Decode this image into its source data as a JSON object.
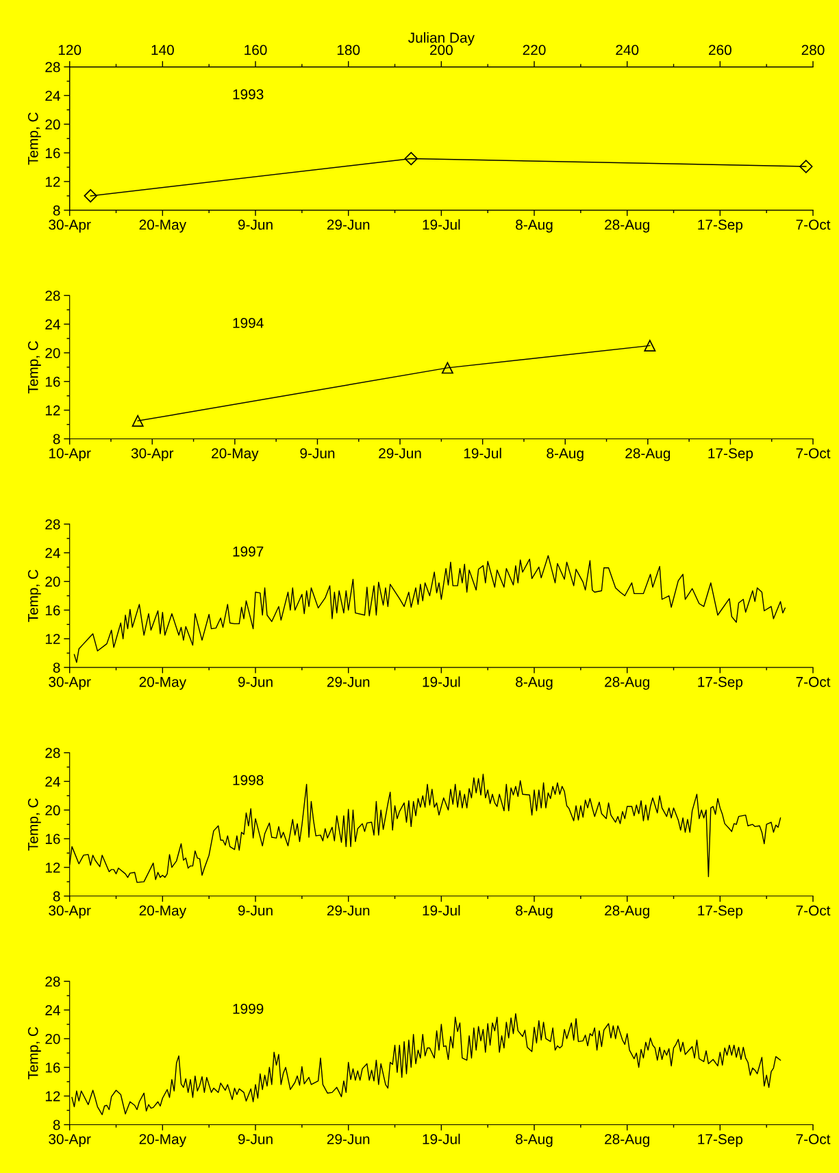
{
  "chart_data": [
    {
      "type": "line",
      "title": "1993",
      "ylabel": "Temp, C",
      "x2label": "Julian Day",
      "marker": "diamond",
      "xlim": [
        "1993-04-30",
        "1993-10-07"
      ],
      "xticks": [
        {
          "value": "1993-04-30",
          "label": "30-Apr"
        },
        {
          "value": "1993-05-20",
          "label": "20-May"
        },
        {
          "value": "1993-06-09",
          "label": "9-Jun"
        },
        {
          "value": "1993-06-29",
          "label": "29-Jun"
        },
        {
          "value": "1993-07-19",
          "label": "19-Jul"
        },
        {
          "value": "1993-08-08",
          "label": "8-Aug"
        },
        {
          "value": "1993-08-28",
          "label": "28-Aug"
        },
        {
          "value": "1993-09-17",
          "label": "17-Sep"
        },
        {
          "value": "1993-10-07",
          "label": "7-Oct"
        }
      ],
      "x2lim": [
        120,
        280
      ],
      "x2ticks": [
        120,
        140,
        160,
        180,
        200,
        220,
        240,
        260,
        280
      ],
      "ylim": [
        8,
        28
      ],
      "yticks": [
        8,
        12,
        16,
        20,
        24,
        28
      ],
      "series": [
        {
          "color": "#000000",
          "x": [
            "1993-05-04T12:00",
            "1993-07-12T12:00",
            "1993-10-05T12:00"
          ],
          "values": [
            10.0,
            15.2,
            14.1
          ]
        }
      ]
    },
    {
      "type": "line",
      "title": "1994",
      "ylabel": "Temp, C",
      "marker": "triangle",
      "xlim": [
        "1994-04-10",
        "1994-10-07"
      ],
      "xticks": [
        {
          "value": "1994-04-10",
          "label": "10-Apr"
        },
        {
          "value": "1994-04-30",
          "label": "30-Apr"
        },
        {
          "value": "1994-05-20",
          "label": "20-May"
        },
        {
          "value": "1994-06-09",
          "label": "9-Jun"
        },
        {
          "value": "1994-06-29",
          "label": "29-Jun"
        },
        {
          "value": "1994-07-19",
          "label": "19-Jul"
        },
        {
          "value": "1994-08-08",
          "label": "8-Aug"
        },
        {
          "value": "1994-08-28",
          "label": "28-Aug"
        },
        {
          "value": "1994-09-17",
          "label": "17-Sep"
        },
        {
          "value": "1994-10-07",
          "label": "7-Oct"
        }
      ],
      "ylim": [
        8,
        28
      ],
      "yticks": [
        8,
        12,
        16,
        20,
        24,
        28
      ],
      "series": [
        {
          "color": "#000000",
          "x": [
            "1994-04-26T12:00",
            "1994-07-10T12:00",
            "1994-08-28T12:00"
          ],
          "values": [
            10.5,
            17.9,
            21.0
          ]
        }
      ]
    },
    {
      "type": "line",
      "title": "1997",
      "ylabel": "Temp, C",
      "xlim": [
        "1997-04-30",
        "1997-10-07"
      ],
      "xticks": [
        {
          "value": "1997-04-30",
          "label": "30-Apr"
        },
        {
          "value": "1997-05-20",
          "label": "20-May"
        },
        {
          "value": "1997-06-09",
          "label": "9-Jun"
        },
        {
          "value": "1997-06-29",
          "label": "29-Jun"
        },
        {
          "value": "1997-07-19",
          "label": "19-Jul"
        },
        {
          "value": "1997-08-08",
          "label": "8-Aug"
        },
        {
          "value": "1997-08-28",
          "label": "28-Aug"
        },
        {
          "value": "1997-09-17",
          "label": "17-Sep"
        },
        {
          "value": "1997-10-07",
          "label": "7-Oct"
        }
      ],
      "ylim": [
        8,
        28
      ],
      "yticks": [
        8,
        12,
        16,
        20,
        24,
        28
      ],
      "series": [
        {
          "color": "#000000",
          "x": [
            "1997-05-01",
            "1997-05-01T12:00",
            "1997-05-02",
            "1997-05-03",
            "1997-05-04",
            "1997-05-05",
            "1997-05-06",
            "1997-05-08",
            "1997-05-09",
            "1997-05-09T12:00",
            "1997-05-11",
            "1997-05-11T12:00",
            "1997-05-12",
            "1997-05-12T12:00",
            "1997-05-13",
            "1997-05-13T12:00",
            "1997-05-15",
            "1997-05-16",
            "1997-05-17",
            "1997-05-17T12:00",
            "1997-05-19",
            "1997-05-19T12:00",
            "1997-05-20",
            "1997-05-20T12:00",
            "1997-05-22",
            "1997-05-23T12:00",
            "1997-05-24",
            "1997-05-24T12:00",
            "1997-05-25",
            "1997-05-26T12:00",
            "1997-05-27",
            "1997-05-28T12:00",
            "1997-05-30",
            "1997-05-30T12:00",
            "1997-05-31T12:00",
            "1997-06-01T12:00",
            "1997-06-02",
            "1997-06-03",
            "1997-06-03T12:00",
            "1997-06-04T12:00",
            "1997-06-05T12:00",
            "1997-06-06",
            "1997-06-06T12:00",
            "1997-06-07",
            "1997-06-08T12:00",
            "1997-06-09",
            "1997-06-10",
            "1997-06-10T12:00",
            "1997-06-11",
            "1997-06-11T12:00",
            "1997-06-12T12:00",
            "1997-06-14",
            "1997-06-14T12:00",
            "1997-06-16",
            "1997-06-16T12:00",
            "1997-06-17",
            "1997-06-17T12:00",
            "1997-06-19",
            "1997-06-19T12:00",
            "1997-06-20",
            "1997-06-20T12:00",
            "1997-06-21",
            "1997-06-22T12:00",
            "1997-06-24",
            "1997-06-25",
            "1997-06-25T12:00",
            "1997-06-26",
            "1997-06-26T12:00",
            "1997-06-27",
            "1997-06-28",
            "1997-06-28T12:00",
            "1997-06-29",
            "1997-06-30",
            "1997-06-30T12:00",
            "1997-07-02T12:00",
            "1997-07-03",
            "1997-07-03T12:00",
            "1997-07-04T12:00",
            "1997-07-05",
            "1997-07-05T12:00",
            "1997-07-06T12:00",
            "1997-07-07",
            "1997-07-07T12:00",
            "1997-07-08",
            "1997-07-10",
            "1997-07-11",
            "1997-07-12",
            "1997-07-12T12:00",
            "1997-07-13T12:00",
            "1997-07-14",
            "1997-07-14T12:00",
            "1997-07-15",
            "1997-07-15T12:00",
            "1997-07-16T12:00",
            "1997-07-17T12:00",
            "1997-07-18",
            "1997-07-18T12:00",
            "1997-07-19",
            "1997-07-20",
            "1997-07-20T12:00",
            "1997-07-21",
            "1997-07-21T12:00",
            "1997-07-22T12:00",
            "1997-07-23",
            "1997-07-23T12:00",
            "1997-07-24",
            "1997-07-24T12:00",
            "1997-07-25",
            "1997-07-26T12:00",
            "1997-07-27",
            "1997-07-28",
            "1997-07-28T12:00",
            "1997-07-29",
            "1997-07-30T12:00",
            "1997-07-31",
            "1997-08-01T12:00",
            "1997-08-02",
            "1997-08-03T12:00",
            "1997-08-04",
            "1997-08-04T12:00",
            "1997-08-05",
            "1997-08-05T12:00",
            "1997-08-07",
            "1997-08-07T12:00",
            "1997-08-09",
            "1997-08-09T12:00",
            "1997-08-11",
            "1997-08-12T12:00",
            "1997-08-13",
            "1997-08-14T12:00",
            "1997-08-15",
            "1997-08-16T12:00",
            "1997-08-17",
            "1997-08-18T12:00",
            "1997-08-19",
            "1997-08-20",
            "1997-08-20T12:00",
            "1997-08-21",
            "1997-08-22T12:00",
            "1997-08-23",
            "1997-08-24",
            "1997-08-25T12:00",
            "1997-08-26T12:00",
            "1997-08-27T12:00",
            "1997-08-29",
            "1997-08-29T12:00",
            "1997-08-31T12:00",
            "1997-09-02",
            "1997-09-02T12:00",
            "1997-09-04",
            "1997-09-04T12:00",
            "1997-09-06",
            "1997-09-06T12:00",
            "1997-09-08",
            "1997-09-09",
            "1997-09-09T12:00",
            "1997-09-11",
            "1997-09-12T12:00",
            "1997-09-13T12:00",
            "1997-09-15",
            "1997-09-16T12:00",
            "1997-09-19",
            "1997-09-19T12:00",
            "1997-09-20T12:00",
            "1997-09-21",
            "1997-09-22",
            "1997-09-22T12:00",
            "1997-09-24",
            "1997-09-24T12:00",
            "1997-09-25",
            "1997-09-26",
            "1997-09-26T12:00",
            "1997-09-28",
            "1997-09-28T12:00",
            "1997-09-30",
            "1997-09-30T12:00",
            "1997-10-01"
          ],
          "values": [
            9.8,
            8.7,
            10.6,
            11.3,
            12.0,
            12.7,
            10.3,
            11.3,
            13.2,
            10.8,
            14.2,
            12.0,
            15.3,
            13.4,
            16.1,
            13.6,
            16.8,
            12.5,
            15.5,
            13.2,
            15.9,
            12.7,
            15.7,
            12.5,
            15.5,
            12.5,
            13.6,
            11.8,
            13.7,
            11.1,
            15.5,
            11.8,
            15.4,
            13.4,
            13.5,
            14.9,
            13.6,
            16.8,
            14.2,
            14.1,
            14.1,
            16.4,
            14.8,
            17.3,
            13.4,
            18.5,
            18.4,
            15.3,
            19.1,
            15.3,
            14.4,
            16.5,
            14.6,
            18.5,
            16.0,
            19.1,
            16.0,
            18.2,
            15.5,
            18.7,
            16.5,
            19.1,
            16.3,
            17.7,
            19.4,
            14.8,
            18.5,
            15.6,
            18.7,
            15.6,
            18.7,
            16.0,
            20.3,
            15.6,
            15.3,
            19.2,
            15.2,
            19.4,
            15.3,
            19.9,
            16.7,
            19.1,
            16.5,
            19.6,
            17.6,
            16.5,
            18.5,
            16.4,
            19.1,
            16.8,
            19.6,
            17.3,
            19.8,
            18.0,
            21.3,
            18.4,
            19.8,
            17.5,
            21.8,
            19.5,
            22.7,
            19.4,
            19.4,
            21.8,
            19.8,
            22.4,
            18.5,
            21.6,
            18.8,
            21.7,
            22.2,
            19.8,
            22.8,
            19.2,
            21.6,
            19.2,
            21.8,
            19.5,
            22.2,
            19.8,
            23.0,
            21.3,
            23.1,
            20.4,
            22.0,
            20.5,
            23.6,
            19.8,
            22.5,
            20.3,
            22.7,
            19.4,
            21.7,
            19.9,
            18.8,
            22.9,
            18.8,
            18.5,
            18.7,
            21.9,
            21.9,
            19.1,
            18.5,
            18.0,
            19.8,
            18.3,
            18.3,
            21.0,
            19.2,
            22.1,
            17.5,
            18.0,
            16.4,
            20.1,
            21.0,
            17.5,
            19.0,
            16.9,
            16.5,
            19.8,
            15.3,
            17.6,
            15.1,
            14.3,
            17.0,
            17.5,
            15.7,
            18.7,
            17.2,
            19.1,
            18.5,
            15.9,
            16.5,
            14.8,
            17.2,
            15.6,
            16.3
          ]
        }
      ]
    },
    {
      "type": "line",
      "title": "1998",
      "ylabel": "Temp, C",
      "xlim": [
        "1998-04-30",
        "1998-10-07"
      ],
      "xticks": [
        {
          "value": "1998-04-30",
          "label": "30-Apr"
        },
        {
          "value": "1998-05-20",
          "label": "20-May"
        },
        {
          "value": "1998-06-09",
          "label": "9-Jun"
        },
        {
          "value": "1998-06-29",
          "label": "29-Jun"
        },
        {
          "value": "1998-07-19",
          "label": "19-Jul"
        },
        {
          "value": "1998-08-08",
          "label": "8-Aug"
        },
        {
          "value": "1998-08-28",
          "label": "28-Aug"
        },
        {
          "value": "1998-09-17",
          "label": "17-Sep"
        },
        {
          "value": "1998-10-07",
          "label": "7-Oct"
        }
      ],
      "ylim": [
        8,
        28
      ],
      "yticks": [
        8,
        12,
        16,
        20,
        24,
        28
      ],
      "series": [
        {
          "color": "#000000",
          "x": [
            "1998-04-30",
            "1998-04-30T12:00",
            "1998-05-02",
            "1998-05-03",
            "1998-05-04",
            "1998-05-04T12:00",
            "1998-05-05",
            "1998-05-05T12:00",
            "1998-05-06T12:00",
            "1998-05-07",
            "1998-05-08T12:00",
            "1998-05-09",
            "1998-05-09T12:00",
            "1998-05-10",
            "1998-05-10T12:00",
            "1998-05-12",
            "1998-05-12T12:00",
            "1998-05-13",
            "1998-05-14",
            "1998-05-14T12:00",
            "1998-05-16",
            "1998-05-18",
            "1998-05-18T12:00",
            "1998-05-19",
            "1998-05-19T12:00",
            "1998-05-20",
            "1998-05-20T12:00",
            "1998-05-21",
            "1998-05-21T12:00",
            "1998-05-22",
            "1998-05-23",
            "1998-05-23T12:00",
            "1998-05-24",
            "1998-05-24T12:00",
            "1998-05-25",
            "1998-05-25T12:00",
            "1998-05-26",
            "1998-05-26T12:00",
            "1998-05-27",
            "1998-05-27T12:00",
            "1998-05-28",
            "1998-05-28T12:00",
            "1998-05-29",
            "1998-05-30",
            "1998-05-31",
            "1998-06-01",
            "1998-06-01T12:00",
            "1998-06-02",
            "1998-06-02T12:00",
            "1998-06-03",
            "1998-06-03T12:00",
            "1998-06-04T12:00",
            "1998-06-05",
            "1998-06-05T12:00",
            "1998-06-06",
            "1998-06-06T12:00",
            "1998-06-07",
            "1998-06-07T12:00",
            "1998-06-08",
            "1998-06-08T12:00",
            "1998-06-09",
            "1998-06-10T12:00",
            "1998-06-11",
            "1998-06-12",
            "1998-06-12T12:00",
            "1998-06-13T12:00",
            "1998-06-14",
            "1998-06-14T12:00",
            "1998-06-15",
            "1998-06-16",
            "1998-06-17",
            "1998-06-17T12:00",
            "1998-06-18",
            "1998-06-18T12:00",
            "1998-06-19",
            "1998-06-20",
            "1998-06-20T12:00",
            "1998-06-21",
            "1998-06-21T12:00",
            "1998-06-22",
            "1998-06-23",
            "1998-06-23T12:00",
            "1998-06-24",
            "1998-06-24T12:00",
            "1998-06-25T12:00",
            "1998-06-26",
            "1998-06-26T12:00",
            "1998-06-27T12:00",
            "1998-06-28",
            "1998-06-28T12:00",
            "1998-06-29",
            "1998-06-29T12:00",
            "1998-06-30",
            "1998-06-30T12:00",
            "1998-07-01",
            "1998-07-02",
            "1998-07-02T12:00",
            "1998-07-03",
            "1998-07-04",
            "1998-07-04T12:00",
            "1998-07-05",
            "1998-07-05T12:00",
            "1998-07-06",
            "1998-07-06T12:00",
            "1998-07-07T12:00",
            "1998-07-08",
            "1998-07-08T12:00",
            "1998-07-09",
            "1998-07-09T12:00",
            "1998-07-10",
            "1998-07-11",
            "1998-07-11T12:00",
            "1998-07-12",
            "1998-07-12T12:00",
            "1998-07-13",
            "1998-07-13T12:00",
            "1998-07-14",
            "1998-07-14T12:00",
            "1998-07-15",
            "1998-07-15T12:00",
            "1998-07-16",
            "1998-07-16T12:00",
            "1998-07-17",
            "1998-07-17T12:00",
            "1998-07-18",
            "1998-07-18T12:00",
            "1998-07-19T12:00",
            "1998-07-20T12:00",
            "1998-07-21",
            "1998-07-21T12:00",
            "1998-07-22",
            "1998-07-22T12:00",
            "1998-07-23",
            "1998-07-23T12:00",
            "1998-07-24",
            "1998-07-24T12:00",
            "1998-07-25",
            "1998-07-25T12:00",
            "1998-07-26",
            "1998-07-26T12:00",
            "1998-07-27",
            "1998-07-27T12:00",
            "1998-07-28",
            "1998-07-28T12:00",
            "1998-07-29",
            "1998-07-29T12:00",
            "1998-07-30",
            "1998-07-30T12:00",
            "1998-07-31",
            "1998-07-31T12:00",
            "1998-08-01T12:00",
            "1998-08-02",
            "1998-08-02T12:00",
            "1998-08-03",
            "1998-08-03T12:00",
            "1998-08-04",
            "1998-08-04T12:00",
            "1998-08-05",
            "1998-08-05T12:00",
            "1998-08-07",
            "1998-08-07T12:00",
            "1998-08-08",
            "1998-08-08T12:00",
            "1998-08-09",
            "1998-08-09T12:00",
            "1998-08-10",
            "1998-08-10T12:00",
            "1998-08-11",
            "1998-08-11T12:00",
            "1998-08-12",
            "1998-08-12T12:00",
            "1998-08-13",
            "1998-08-13T12:00",
            "1998-08-14",
            "1998-08-14T12:00",
            "1998-08-15",
            "1998-08-15T12:00",
            "1998-08-16T12:00",
            "1998-08-17",
            "1998-08-17T12:00",
            "1998-08-18",
            "1998-08-18T12:00",
            "1998-08-19",
            "1998-08-19T12:00",
            "1998-08-20",
            "1998-08-20T12:00",
            "1998-08-21",
            "1998-08-22",
            "1998-08-22T12:00",
            "1998-08-23T12:00",
            "1998-08-24",
            "1998-08-24T12:00",
            "1998-08-25T12:00",
            "1998-08-26",
            "1998-08-26T12:00",
            "1998-08-27",
            "1998-08-27T12:00",
            "1998-08-28",
            "1998-08-29",
            "1998-08-29T12:00",
            "1998-08-30",
            "1998-08-30T12:00",
            "1998-08-31",
            "1998-08-31T12:00",
            "1998-09-01",
            "1998-09-01T12:00",
            "1998-09-02",
            "1998-09-02T12:00",
            "1998-09-03T12:00",
            "1998-09-04",
            "1998-09-04T12:00",
            "1998-09-05T12:00",
            "1998-09-06",
            "1998-09-06T12:00",
            "1998-09-07",
            "1998-09-08",
            "1998-09-08T12:00",
            "1998-09-09",
            "1998-09-09T12:00",
            "1998-09-10",
            "1998-09-10T12:00",
            "1998-09-11",
            "1998-09-12",
            "1998-09-12T12:00",
            "1998-09-13",
            "1998-09-13T12:00",
            "1998-09-14",
            "1998-09-14T12:00",
            "1998-09-15",
            "1998-09-15T12:00",
            "1998-09-16",
            "1998-09-16T12:00",
            "1998-09-17",
            "1998-09-17T12:00",
            "1998-09-18",
            "1998-09-19",
            "1998-09-19T12:00",
            "1998-09-20",
            "1998-09-20T12:00",
            "1998-09-21",
            "1998-09-22T12:00",
            "1998-09-23",
            "1998-09-24",
            "1998-09-24T12:00",
            "1998-09-25T12:00",
            "1998-09-26",
            "1998-09-26T12:00",
            "1998-09-27",
            "1998-09-28",
            "1998-09-28T12:00",
            "1998-09-29",
            "1998-09-29T12:00",
            "1998-09-30"
          ],
          "values": [
            12.4,
            14.9,
            12.5,
            13.7,
            13.8,
            12.3,
            13.7,
            13.0,
            12.1,
            13.7,
            11.4,
            11.7,
            11.7,
            11.1,
            11.9,
            11.1,
            10.6,
            11.2,
            11.3,
            9.9,
            10.0,
            12.6,
            10.3,
            11.3,
            10.6,
            10.9,
            10.6,
            11.1,
            13.8,
            12.0,
            12.9,
            14.1,
            15.3,
            13.0,
            13.3,
            11.9,
            12.2,
            12.2,
            14.3,
            13.3,
            13.2,
            10.9,
            11.9,
            13.7,
            17.1,
            17.8,
            15.8,
            15.8,
            15.1,
            16.4,
            14.9,
            14.5,
            16.4,
            14.4,
            16.9,
            16.6,
            19.6,
            17.8,
            20.2,
            16.1,
            18.8,
            15.0,
            16.7,
            18.2,
            16.2,
            16.1,
            17.7,
            16.1,
            16.9,
            15.0,
            18.7,
            16.5,
            18.1,
            15.6,
            17.9,
            23.6,
            16.2,
            21.2,
            18.5,
            16.4,
            16.5,
            15.7,
            17.4,
            16.1,
            17.6,
            15.7,
            19.2,
            15.5,
            19.2,
            14.9,
            20.1,
            14.9,
            20.0,
            15.6,
            17.4,
            18.1,
            17.0,
            18.2,
            18.3,
            16.5,
            21.2,
            16.5,
            20.0,
            17.3,
            20.9,
            22.5,
            17.2,
            20.6,
            18.8,
            19.8,
            21.0,
            18.3,
            21.3,
            17.7,
            21.2,
            19.2,
            21.6,
            20.4,
            22.0,
            20.4,
            23.6,
            20.7,
            22.9,
            20.4,
            21.0,
            19.3,
            21.7,
            20.0,
            22.9,
            20.8,
            23.6,
            20.4,
            22.7,
            20.3,
            22.2,
            20.3,
            23.0,
            21.7,
            24.5,
            22.4,
            24.4,
            22.1,
            25.0,
            21.7,
            22.8,
            20.9,
            22.2,
            21.0,
            20.5,
            22.2,
            19.9,
            23.6,
            19.9,
            23.1,
            22.1,
            23.3,
            21.9,
            24.1,
            22.2,
            22.1,
            19.3,
            22.8,
            19.9,
            22.8,
            20.3,
            23.8,
            20.3,
            22.4,
            21.6,
            23.3,
            22.2,
            23.8,
            22.2,
            23.3,
            22.6,
            20.6,
            20.2,
            18.5,
            20.6,
            18.6,
            20.6,
            19.0,
            21.4,
            20.3,
            21.6,
            20.3,
            19.1,
            21.1,
            19.5,
            18.8,
            21.0,
            19.3,
            18.3,
            19.1,
            18.1,
            19.8,
            18.8,
            20.5,
            20.5,
            19.2,
            20.7,
            19.5,
            21.3,
            18.5,
            20.7,
            18.6,
            20.5,
            21.7,
            19.6,
            22.0,
            20.3,
            19.1,
            20.3,
            18.9,
            20.3,
            18.6,
            17.2,
            18.9,
            16.9,
            18.7,
            16.9,
            19.9,
            22.2,
            18.8,
            20.0,
            18.9,
            20.0,
            10.7,
            20.3,
            20.5,
            19.4,
            21.6,
            20.3,
            19.4,
            18.1,
            17.4,
            17.0,
            18.1,
            18.0,
            19.1,
            19.3,
            17.8,
            18.0,
            17.7,
            17.8,
            16.9,
            15.3,
            18.0,
            18.3,
            16.9,
            17.9,
            17.6,
            18.9
          ]
        }
      ]
    },
    {
      "type": "line",
      "title": "1999",
      "ylabel": "Temp, C",
      "xlim": [
        "1999-04-30",
        "1999-10-07"
      ],
      "xticks": [
        {
          "value": "1999-04-30",
          "label": "30-Apr"
        },
        {
          "value": "1999-05-20",
          "label": "20-May"
        },
        {
          "value": "1999-06-09",
          "label": "9-Jun"
        },
        {
          "value": "1999-06-29",
          "label": "29-Jun"
        },
        {
          "value": "1999-07-19",
          "label": "19-Jul"
        },
        {
          "value": "1999-08-08",
          "label": "8-Aug"
        },
        {
          "value": "1999-08-28",
          "label": "28-Aug"
        },
        {
          "value": "1999-09-17",
          "label": "17-Sep"
        },
        {
          "value": "1999-10-07",
          "label": "7-Oct"
        }
      ],
      "ylim": [
        8,
        28
      ],
      "yticks": [
        8,
        12,
        16,
        20,
        24,
        28
      ],
      "series": [
        {
          "color": "#000000",
          "x": [
            "1999-04-30T12:00",
            "1999-05-01",
            "1999-05-01T12:00",
            "1999-05-02",
            "1999-05-02T12:00",
            "1999-05-04",
            "1999-05-05",
            "1999-05-05T12:00",
            "1999-05-06",
            "1999-05-07",
            "1999-05-07T12:00",
            "1999-05-08",
            "1999-05-08T12:00",
            "1999-05-09",
            "1999-05-10",
            "1999-05-11",
            "1999-05-12",
            "1999-05-13",
            "1999-05-14",
            "1999-05-14T12:00",
            "1999-05-15",
            "1999-05-16",
            "1999-05-16T12:00",
            "1999-05-17",
            "1999-05-17T12:00",
            "1999-05-18",
            "1999-05-19",
            "1999-05-19T12:00",
            "1999-05-20",
            "1999-05-21",
            "1999-05-21T12:00",
            "1999-05-22",
            "1999-05-22T12:00",
            "1999-05-23",
            "1999-05-23T12:00",
            "1999-05-24",
            "1999-05-24T12:00",
            "1999-05-25",
            "1999-05-25T12:00",
            "1999-05-26",
            "1999-05-26T12:00",
            "1999-05-27",
            "1999-05-27T12:00",
            "1999-05-28",
            "1999-05-28T12:00",
            "1999-05-29",
            "1999-05-29T12:00",
            "1999-05-30T12:00",
            "1999-05-31",
            "1999-06-01",
            "1999-06-01T12:00",
            "1999-06-02T12:00",
            "1999-06-03",
            "1999-06-04",
            "1999-06-04T12:00",
            "1999-06-05",
            "1999-06-05T12:00",
            "1999-06-06T12:00",
            "1999-06-07",
            "1999-06-08",
            "1999-06-08T12:00",
            "1999-06-09",
            "1999-06-09T12:00",
            "1999-06-10",
            "1999-06-10T12:00",
            "1999-06-11",
            "1999-06-11T12:00",
            "1999-06-12",
            "1999-06-12T12:00",
            "1999-06-13",
            "1999-06-13T12:00",
            "1999-06-14",
            "1999-06-14T12:00",
            "1999-06-15",
            "1999-06-15T12:00",
            "1999-06-16T12:00",
            "1999-06-17T12:00",
            "1999-06-18",
            "1999-06-18T12:00",
            "1999-06-19",
            "1999-06-19T12:00",
            "1999-06-20T12:00",
            "1999-06-21",
            "1999-06-22T12:00",
            "1999-06-23",
            "1999-06-23T12:00",
            "1999-06-24T12:00",
            "1999-06-25T12:00",
            "1999-06-26T12:00",
            "1999-06-27T12:00",
            "1999-06-28",
            "1999-06-28T12:00",
            "1999-06-29",
            "1999-06-29T12:00",
            "1999-06-30",
            "1999-06-30T12:00",
            "1999-07-01",
            "1999-07-01T12:00",
            "1999-07-02",
            "1999-07-03",
            "1999-07-03T12:00",
            "1999-07-04",
            "1999-07-04T12:00",
            "1999-07-05",
            "1999-07-05T12:00",
            "1999-07-06",
            "1999-07-07",
            "1999-07-07T12:00",
            "1999-07-08",
            "1999-07-08T12:00",
            "1999-07-09",
            "1999-07-09T12:00",
            "1999-07-10",
            "1999-07-10T12:00",
            "1999-07-11",
            "1999-07-11T12:00",
            "1999-07-12",
            "1999-07-12T12:00",
            "1999-07-13",
            "1999-07-13T12:00",
            "1999-07-14",
            "1999-07-14T12:00",
            "1999-07-15",
            "1999-07-15T12:00",
            "1999-07-16",
            "1999-07-16T12:00",
            "1999-07-17T12:00",
            "1999-07-18",
            "1999-07-18T12:00",
            "1999-07-19",
            "1999-07-19T12:00",
            "1999-07-20",
            "1999-07-20T12:00",
            "1999-07-21",
            "1999-07-21T12:00",
            "1999-07-22",
            "1999-07-22T12:00",
            "1999-07-23",
            "1999-07-23T12:00",
            "1999-07-24T12:00",
            "1999-07-25",
            "1999-07-25T12:00",
            "1999-07-26",
            "1999-07-26T12:00",
            "1999-07-27",
            "1999-07-27T12:00",
            "1999-07-28",
            "1999-07-28T12:00",
            "1999-07-29",
            "1999-07-29T12:00",
            "1999-07-30",
            "1999-07-30T12:00",
            "1999-07-31",
            "1999-07-31T12:00",
            "1999-08-01",
            "1999-08-01T12:00",
            "1999-08-02",
            "1999-08-02T12:00",
            "1999-08-03",
            "1999-08-03T12:00",
            "1999-08-04",
            "1999-08-04T12:00",
            "1999-08-05T12:00",
            "1999-08-06",
            "1999-08-06T12:00",
            "1999-08-07T12:00",
            "1999-08-08",
            "1999-08-08T12:00",
            "1999-08-09",
            "1999-08-09T12:00",
            "1999-08-10",
            "1999-08-10T12:00",
            "1999-08-11T12:00",
            "1999-08-12",
            "1999-08-12T12:00",
            "1999-08-13",
            "1999-08-13T12:00",
            "1999-08-14",
            "1999-08-14T12:00",
            "1999-08-15",
            "1999-08-16",
            "1999-08-16T12:00",
            "1999-08-17",
            "1999-08-17T12:00",
            "1999-08-18T12:00",
            "1999-08-19",
            "1999-08-19T12:00",
            "1999-08-20",
            "1999-08-20T12:00",
            "1999-08-21",
            "1999-08-21T12:00",
            "1999-08-22",
            "1999-08-22T12:00",
            "1999-08-23",
            "1999-08-24",
            "1999-08-24T12:00",
            "1999-08-25",
            "1999-08-25T12:00",
            "1999-08-26",
            "1999-08-27",
            "1999-08-27T12:00",
            "1999-08-28",
            "1999-08-28T12:00",
            "1999-08-29T12:00",
            "1999-08-30",
            "1999-08-30T12:00",
            "1999-08-31",
            "1999-08-31T12:00",
            "1999-09-01",
            "1999-09-01T12:00",
            "1999-09-02",
            "1999-09-02T12:00",
            "1999-09-03",
            "1999-09-03T12:00",
            "1999-09-04",
            "1999-09-04T12:00",
            "1999-09-05",
            "1999-09-05T12:00",
            "1999-09-06",
            "1999-09-06T12:00",
            "1999-09-07",
            "1999-09-07T12:00",
            "1999-09-08",
            "1999-09-08T12:00",
            "1999-09-09",
            "1999-09-09T12:00",
            "1999-09-11",
            "1999-09-11T12:00",
            "1999-09-12",
            "1999-09-12T12:00",
            "1999-09-13T12:00",
            "1999-09-14",
            "1999-09-14T12:00",
            "1999-09-15T12:00",
            "1999-09-16T12:00",
            "1999-09-17",
            "1999-09-17T12:00",
            "1999-09-18",
            "1999-09-18T12:00",
            "1999-09-19",
            "1999-09-19T12:00",
            "1999-09-20",
            "1999-09-20T12:00",
            "1999-09-21",
            "1999-09-21T12:00",
            "1999-09-22",
            "1999-09-22T12:00",
            "1999-09-23",
            "1999-09-23T12:00",
            "1999-09-24",
            "1999-09-24T12:00",
            "1999-09-25",
            "1999-09-26",
            "1999-09-26T12:00",
            "1999-09-27",
            "1999-09-27T12:00",
            "1999-09-28",
            "1999-09-28T12:00",
            "1999-09-29",
            "1999-09-30"
          ],
          "values": [
            11.8,
            10.5,
            12.7,
            11.3,
            12.7,
            10.8,
            12.8,
            11.7,
            10.5,
            9.4,
            10.6,
            10.7,
            10.1,
            11.9,
            12.8,
            12.2,
            9.5,
            11.2,
            10.7,
            10.1,
            11.2,
            12.4,
            9.9,
            10.8,
            10.3,
            10.4,
            11.2,
            10.6,
            11.7,
            12.9,
            11.8,
            14.3,
            12.7,
            16.6,
            17.6,
            13.7,
            13.2,
            14.4,
            12.5,
            14.3,
            11.8,
            14.8,
            12.7,
            13.5,
            14.7,
            12.5,
            14.6,
            12.5,
            13.1,
            12.5,
            13.8,
            12.8,
            13.6,
            11.5,
            13.1,
            12.2,
            13.0,
            12.5,
            11.3,
            13.0,
            11.2,
            13.6,
            11.7,
            15.1,
            12.9,
            14.9,
            13.4,
            16.0,
            13.6,
            18.1,
            16.3,
            17.8,
            13.6,
            15.2,
            16.0,
            12.9,
            13.9,
            14.8,
            13.5,
            16.1,
            13.7,
            14.6,
            13.6,
            14.1,
            17.3,
            13.6,
            12.4,
            12.5,
            13.2,
            11.9,
            14.1,
            12.5,
            16.7,
            14.3,
            15.8,
            14.2,
            15.5,
            14.2,
            15.8,
            16.5,
            14.2,
            15.6,
            14.1,
            17.0,
            13.6,
            16.5,
            13.6,
            13.1,
            16.7,
            16.4,
            19.1,
            15.3,
            19.1,
            14.6,
            19.6,
            15.1,
            19.8,
            16.0,
            20.6,
            16.5,
            18.4,
            17.3,
            20.6,
            17.6,
            18.7,
            18.7,
            17.3,
            21.1,
            18.4,
            22.0,
            18.9,
            19.0,
            17.1,
            20.3,
            18.7,
            23.0,
            21.0,
            22.2,
            17.3,
            17.0,
            20.4,
            17.3,
            21.5,
            18.4,
            21.7,
            19.7,
            21.3,
            18.1,
            22.1,
            19.1,
            22.2,
            21.1,
            23.0,
            18.1,
            20.4,
            18.7,
            22.3,
            20.1,
            22.9,
            20.7,
            23.5,
            21.1,
            20.3,
            21.2,
            18.8,
            18.2,
            21.6,
            19.4,
            22.5,
            19.8,
            22.3,
            20.0,
            19.6,
            21.5,
            18.4,
            19.0,
            18.7,
            19.0,
            21.3,
            20.0,
            22.2,
            19.8,
            22.8,
            19.6,
            19.7,
            20.5,
            19.0,
            20.7,
            20.4,
            21.5,
            18.4,
            21.1,
            18.9,
            21.2,
            22.1,
            20.1,
            21.8,
            20.0,
            21.8,
            19.8,
            19.2,
            20.7,
            18.4,
            17.2,
            18.0,
            16.0,
            18.5,
            17.3,
            19.5,
            18.4,
            20.1,
            19.1,
            18.7,
            17.0,
            18.8,
            17.1,
            18.4,
            17.7,
            18.6,
            16.2,
            18.7,
            19.2,
            19.9,
            18.2,
            19.5,
            17.8,
            18.9,
            17.3,
            19.8,
            17.2,
            16.8,
            18.3,
            16.5,
            17.1,
            16.2,
            18.1,
            16.3,
            18.7,
            17.7,
            19.1,
            17.7,
            19.1,
            17.4,
            18.8,
            17.1,
            18.8,
            17.3,
            16.7,
            14.9,
            15.9,
            15.6,
            15.1,
            17.4,
            13.4,
            14.9,
            13.2,
            15.4,
            15.9,
            17.5,
            17.0
          ]
        }
      ]
    }
  ]
}
